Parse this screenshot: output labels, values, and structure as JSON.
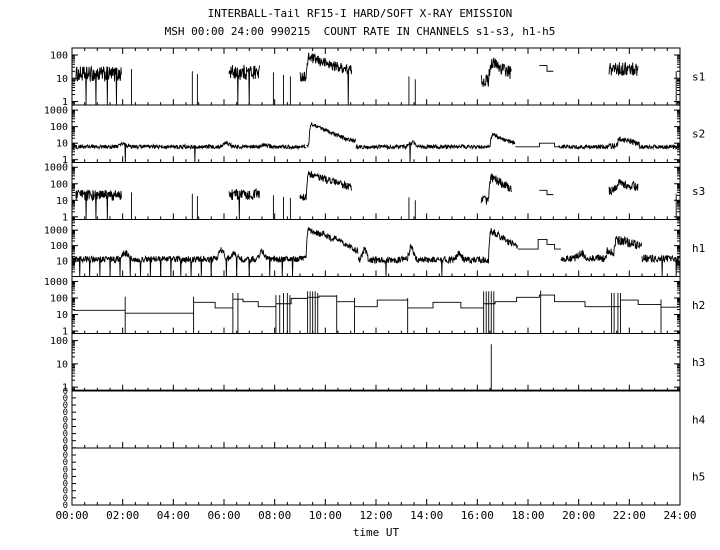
{
  "title": "INTERBALL-Tail RF15-I HARD/SOFT X-RAY EMISSION",
  "subtitle": "MSH 00:00 24:00 990215  COUNT RATE IN CHANNELS s1-s3, h1-h5",
  "xlabel": "time UT",
  "x_ticks": [
    "00:00",
    "02:00",
    "04:00",
    "06:00",
    "08:00",
    "10:00",
    "12:00",
    "14:00",
    "16:00",
    "18:00",
    "20:00",
    "22:00",
    "24:00"
  ],
  "chart_data": {
    "type": "line",
    "x_unit": "time UT (hours)",
    "x_range_hours": [
      0,
      24
    ],
    "x_tick_step_hours": 2,
    "grid": false,
    "line_color": "#000000",
    "background": "#ffffff",
    "panels": [
      {
        "label": "s1",
        "scale": "log",
        "ylim": [
          0.7,
          200
        ],
        "yticks": [
          100,
          10,
          1
        ],
        "segments": [
          {
            "type": "noise",
            "t0": 0.15,
            "t1": 1.95,
            "level": 15,
            "spread": 0.33,
            "drops": [
              0.55,
              0.95,
              1.4,
              1.75
            ]
          },
          {
            "type": "spike",
            "t": 2.35,
            "level": 25
          },
          {
            "type": "spike",
            "t": 4.75,
            "level": 20
          },
          {
            "type": "spike",
            "t": 4.95,
            "level": 15
          },
          {
            "type": "noise",
            "t0": 6.2,
            "t1": 7.4,
            "level": 18,
            "spread": 0.33,
            "drops": [
              6.55,
              7.0
            ]
          },
          {
            "type": "spike",
            "t": 7.95,
            "level": 18
          },
          {
            "type": "spike",
            "t": 8.35,
            "level": 14
          },
          {
            "type": "spike",
            "t": 8.62,
            "level": 12
          },
          {
            "type": "flare",
            "t0": 9.0,
            "t1": 11.05,
            "base": 12,
            "peak": 80,
            "tpeak": 9.35,
            "tau": 0.9,
            "spread": 0.22,
            "drops": [
              10.9
            ]
          },
          {
            "type": "spike",
            "t": 13.3,
            "level": 12
          },
          {
            "type": "spike",
            "t": 13.55,
            "level": 9
          },
          {
            "type": "flare",
            "t0": 16.15,
            "t1": 17.35,
            "base": 8,
            "peak": 50,
            "tpeak": 16.55,
            "tau": 0.5,
            "spread": 0.28
          },
          {
            "type": "steps",
            "points": [
              [
                18.45,
                35
              ],
              [
                18.75,
                20
              ]
            ],
            "t1": 19.0
          },
          {
            "type": "noise",
            "t0": 21.2,
            "t1": 22.35,
            "level": 25,
            "spread": 0.3
          },
          {
            "type": "spike",
            "t": 23.85,
            "level": 20
          }
        ]
      },
      {
        "label": "s2",
        "scale": "log",
        "ylim": [
          0.7,
          2000
        ],
        "yticks": [
          1000,
          100,
          10,
          1
        ],
        "segments": [
          {
            "type": "noise",
            "t0": 0.02,
            "t1": 9.25,
            "level": 6,
            "spread": 0.12,
            "drops": [
              2.1,
              4.85
            ],
            "bumps": [
              {
                "t": 2.0,
                "f": 1.5
              },
              {
                "t": 6.1,
                "f": 1.7
              },
              {
                "t": 7.6,
                "f": 1.3
              }
            ]
          },
          {
            "type": "flare",
            "t0": 9.25,
            "t1": 11.2,
            "base": 7,
            "peak": 150,
            "tpeak": 9.45,
            "tau": 0.55,
            "spread": 0.13
          },
          {
            "type": "noise",
            "t0": 11.2,
            "t1": 16.2,
            "level": 6,
            "spread": 0.12,
            "drops": [
              13.35
            ],
            "bumps": [
              {
                "t": 13.45,
                "f": 1.8
              }
            ]
          },
          {
            "type": "flare",
            "t0": 16.2,
            "t1": 17.5,
            "base": 6,
            "peak": 35,
            "tpeak": 16.6,
            "tau": 0.45,
            "spread": 0.13
          },
          {
            "type": "steps",
            "points": [
              [
                17.5,
                6
              ],
              [
                18.45,
                10
              ],
              [
                19.05,
                6
              ]
            ],
            "t1": 19.2
          },
          {
            "type": "noise",
            "t0": 19.2,
            "t1": 21.2,
            "level": 6,
            "spread": 0.12
          },
          {
            "type": "flare",
            "t0": 21.2,
            "t1": 22.4,
            "base": 7,
            "peak": 18,
            "tpeak": 21.6,
            "tau": 0.6,
            "spread": 0.18
          },
          {
            "type": "noise",
            "t0": 22.4,
            "t1": 23.98,
            "level": 6,
            "spread": 0.12
          }
        ]
      },
      {
        "label": "s3",
        "scale": "log",
        "ylim": [
          0.7,
          2000
        ],
        "yticks": [
          1000,
          100,
          10,
          1
        ],
        "segments": [
          {
            "type": "noise",
            "t0": 0.15,
            "t1": 1.95,
            "level": 20,
            "spread": 0.33,
            "drops": [
              0.55,
              0.95,
              1.4
            ]
          },
          {
            "type": "spike",
            "t": 2.35,
            "level": 30
          },
          {
            "type": "spike",
            "t": 4.75,
            "level": 25
          },
          {
            "type": "spike",
            "t": 4.95,
            "level": 18
          },
          {
            "type": "noise",
            "t0": 6.2,
            "t1": 7.4,
            "level": 22,
            "spread": 0.33,
            "drops": [
              6.6
            ]
          },
          {
            "type": "spike",
            "t": 7.95,
            "level": 20
          },
          {
            "type": "spike",
            "t": 8.35,
            "level": 16
          },
          {
            "type": "spike",
            "t": 8.62,
            "level": 14
          },
          {
            "type": "flare",
            "t0": 9.0,
            "t1": 11.05,
            "base": 15,
            "peak": 400,
            "tpeak": 9.35,
            "tau": 0.8,
            "spread": 0.22
          },
          {
            "type": "spike",
            "t": 13.3,
            "level": 15
          },
          {
            "type": "spike",
            "t": 13.55,
            "level": 10
          },
          {
            "type": "flare",
            "t0": 16.15,
            "t1": 17.35,
            "base": 10,
            "peak": 250,
            "tpeak": 16.55,
            "tau": 0.45,
            "spread": 0.28
          },
          {
            "type": "steps",
            "points": [
              [
                18.45,
                40
              ],
              [
                18.75,
                22
              ]
            ],
            "t1": 19.0
          },
          {
            "type": "flare",
            "t0": 21.2,
            "t1": 22.35,
            "base": 40,
            "peak": 120,
            "tpeak": 21.55,
            "tau": 0.7,
            "spread": 0.28
          },
          {
            "type": "spike",
            "t": 23.85,
            "level": 25
          }
        ]
      },
      {
        "label": "h1",
        "scale": "log",
        "ylim": [
          1,
          5000
        ],
        "yticks": [
          1000,
          100,
          10
        ],
        "segments": [
          {
            "type": "noise",
            "t0": 0.02,
            "t1": 9.0,
            "level": 13,
            "spread": 0.2,
            "drops": [
              0.3,
              0.7,
              1.1,
              1.5,
              1.9,
              2.3,
              2.7,
              3.1,
              3.5,
              3.9,
              4.3,
              4.7,
              5.1,
              5.5,
              6.1,
              6.5,
              7.0,
              7.8,
              8.3,
              8.7
            ],
            "bumps": [
              {
                "t": 2.1,
                "f": 2.5
              },
              {
                "t": 5.9,
                "f": 4,
                "w": 0.1
              },
              {
                "t": 6.4,
                "f": 2
              },
              {
                "t": 7.5,
                "f": 3,
                "w": 0.1
              }
            ]
          },
          {
            "type": "flare",
            "t0": 9.0,
            "t1": 11.3,
            "base": 15,
            "peak": 1200,
            "tpeak": 9.35,
            "tau": 0.5,
            "spread": 0.18,
            "sub": [
              {
                "t": 9.9,
                "p": 250,
                "tau": 0.25
              },
              {
                "t": 10.35,
                "p": 180,
                "tau": 0.25
              }
            ]
          },
          {
            "type": "noise",
            "t0": 11.3,
            "t1": 16.2,
            "level": 12,
            "spread": 0.22,
            "drops": [
              12.4,
              14.6
            ],
            "bumps": [
              {
                "t": 11.55,
                "f": 5,
                "w": 0.07
              },
              {
                "t": 13.4,
                "f": 8,
                "w": 0.08
              },
              {
                "t": 15.3,
                "f": 3,
                "w": 0.08
              }
            ]
          },
          {
            "type": "flare",
            "t0": 16.2,
            "t1": 17.6,
            "base": 12,
            "peak": 900,
            "tpeak": 16.55,
            "tau": 0.4,
            "spread": 0.22
          },
          {
            "type": "steps",
            "points": [
              [
                17.6,
                60
              ],
              [
                18.4,
                250
              ],
              [
                18.75,
                120
              ],
              [
                19.05,
                60
              ]
            ],
            "t1": 19.3
          },
          {
            "type": "noise",
            "t0": 19.3,
            "t1": 21.1,
            "level": 15,
            "spread": 0.25,
            "bumps": [
              {
                "t": 20.1,
                "f": 2
              }
            ]
          },
          {
            "type": "flare",
            "t0": 21.1,
            "t1": 22.5,
            "base": 40,
            "peak": 250,
            "tpeak": 21.5,
            "tau": 0.8,
            "spread": 0.3
          },
          {
            "type": "noise",
            "t0": 22.5,
            "t1": 23.98,
            "level": 15,
            "spread": 0.25,
            "drops": [
              23.3,
              23.85
            ]
          }
        ]
      },
      {
        "label": "h2",
        "scale": "log",
        "ylim": [
          0.7,
          2000
        ],
        "yticks": [
          1000,
          100,
          10,
          1
        ],
        "segments": [
          {
            "type": "steps",
            "t1": 23.95,
            "points": [
              [
                0.05,
                18
              ],
              [
                2.1,
                12
              ],
              [
                4.8,
                55
              ],
              [
                5.65,
                25
              ],
              [
                6.35,
                85
              ],
              [
                6.75,
                60
              ],
              [
                7.35,
                30
              ],
              [
                8.05,
                45
              ],
              [
                8.65,
                95
              ],
              [
                9.3,
                110
              ],
              [
                9.75,
                130
              ],
              [
                10.45,
                60
              ],
              [
                11.15,
                30
              ],
              [
                12.05,
                75
              ],
              [
                13.25,
                25
              ],
              [
                14.25,
                55
              ],
              [
                15.35,
                25
              ],
              [
                16.25,
                45
              ],
              [
                16.7,
                60
              ],
              [
                17.55,
                110
              ],
              [
                18.45,
                150
              ],
              [
                19.05,
                60
              ],
              [
                20.25,
                30
              ],
              [
                21.65,
                75
              ],
              [
                22.35,
                40
              ],
              [
                23.25,
                28
              ]
            ]
          }
        ],
        "vlines": [
          {
            "t": 2.1,
            "v": 120
          },
          {
            "t": 4.8,
            "v": 120
          },
          {
            "t": 6.35,
            "v": 200
          },
          {
            "t": 6.55,
            "v": 200
          },
          {
            "t": 8.05,
            "v": 150
          },
          {
            "t": 8.2,
            "v": 150
          },
          {
            "t": 8.35,
            "v": 200
          },
          {
            "t": 8.5,
            "v": 200
          },
          {
            "t": 8.6,
            "v": 150
          },
          {
            "t": 9.3,
            "v": 250
          },
          {
            "t": 9.4,
            "v": 250
          },
          {
            "t": 9.5,
            "v": 250
          },
          {
            "t": 9.6,
            "v": 250
          },
          {
            "t": 9.7,
            "v": 200
          },
          {
            "t": 10.45,
            "v": 150
          },
          {
            "t": 11.15,
            "v": 100
          },
          {
            "t": 13.25,
            "v": 100
          },
          {
            "t": 16.25,
            "v": 250
          },
          {
            "t": 16.35,
            "v": 250
          },
          {
            "t": 16.45,
            "v": 250
          },
          {
            "t": 16.55,
            "v": 250
          },
          {
            "t": 16.65,
            "v": 250
          },
          {
            "t": 18.5,
            "v": 280
          },
          {
            "t": 21.3,
            "v": 200
          },
          {
            "t": 21.4,
            "v": 200
          },
          {
            "t": 21.55,
            "v": 200
          },
          {
            "t": 21.65,
            "v": 200
          },
          {
            "t": 23.25,
            "v": 80
          }
        ]
      },
      {
        "label": "h3",
        "scale": "log",
        "ylim": [
          0.7,
          200
        ],
        "yticks": [
          100,
          10,
          1
        ],
        "segments": [
          {
            "type": "flat",
            "t0": 0.02,
            "t1": 23.98,
            "level": 0.75
          },
          {
            "type": "spike",
            "t": 16.55,
            "level": 70
          }
        ]
      },
      {
        "label": "h4",
        "scale": "linear-zero",
        "ylim": [
          0,
          0
        ],
        "yticks": [
          "0",
          "0",
          "0",
          "0",
          "0",
          "0",
          "0",
          "0",
          "0"
        ],
        "segments": []
      },
      {
        "label": "h5",
        "scale": "linear-zero",
        "ylim": [
          0,
          0
        ],
        "yticks": [
          "0",
          "0",
          "0",
          "0",
          "0",
          "0",
          "0",
          "0",
          "0"
        ],
        "segments": []
      }
    ]
  }
}
